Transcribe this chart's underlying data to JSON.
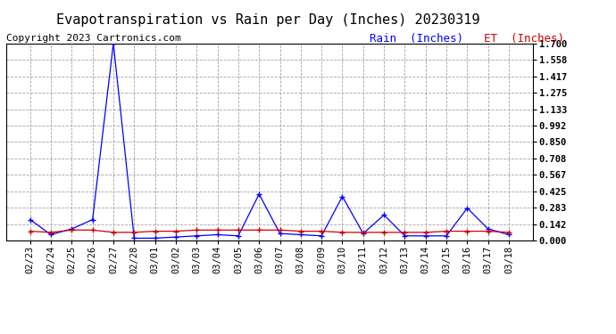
{
  "title": "Evapotranspiration vs Rain per Day (Inches) 20230319",
  "copyright_text": "Copyright 2023 Cartronics.com",
  "legend_rain": "Rain  (Inches)",
  "legend_et": "ET  (Inches)",
  "dates": [
    "02/23",
    "02/24",
    "02/25",
    "02/26",
    "02/27",
    "02/28",
    "03/01",
    "03/02",
    "03/03",
    "03/04",
    "03/05",
    "03/06",
    "03/07",
    "03/08",
    "03/09",
    "03/10",
    "03/11",
    "03/12",
    "03/13",
    "03/14",
    "03/15",
    "03/16",
    "03/17",
    "03/18"
  ],
  "rain_values": [
    0.18,
    0.05,
    0.1,
    0.18,
    1.7,
    0.02,
    0.02,
    0.03,
    0.04,
    0.05,
    0.04,
    0.4,
    0.06,
    0.05,
    0.04,
    0.38,
    0.06,
    0.22,
    0.04,
    0.04,
    0.04,
    0.28,
    0.1,
    0.05
  ],
  "et_values": [
    0.08,
    0.07,
    0.09,
    0.09,
    0.07,
    0.07,
    0.08,
    0.08,
    0.09,
    0.09,
    0.09,
    0.09,
    0.09,
    0.08,
    0.08,
    0.07,
    0.07,
    0.07,
    0.07,
    0.07,
    0.08,
    0.08,
    0.08,
    0.07
  ],
  "rain_color": "#0000ff",
  "et_color": "#cc0000",
  "yticks": [
    0.0,
    0.142,
    0.283,
    0.425,
    0.567,
    0.708,
    0.85,
    0.992,
    1.133,
    1.275,
    1.417,
    1.558,
    1.7
  ],
  "ylim": [
    0.0,
    1.7
  ],
  "background_color": "#ffffff",
  "grid_color": "#999999",
  "title_fontsize": 11,
  "axis_fontsize": 7.5,
  "copyright_fontsize": 8
}
